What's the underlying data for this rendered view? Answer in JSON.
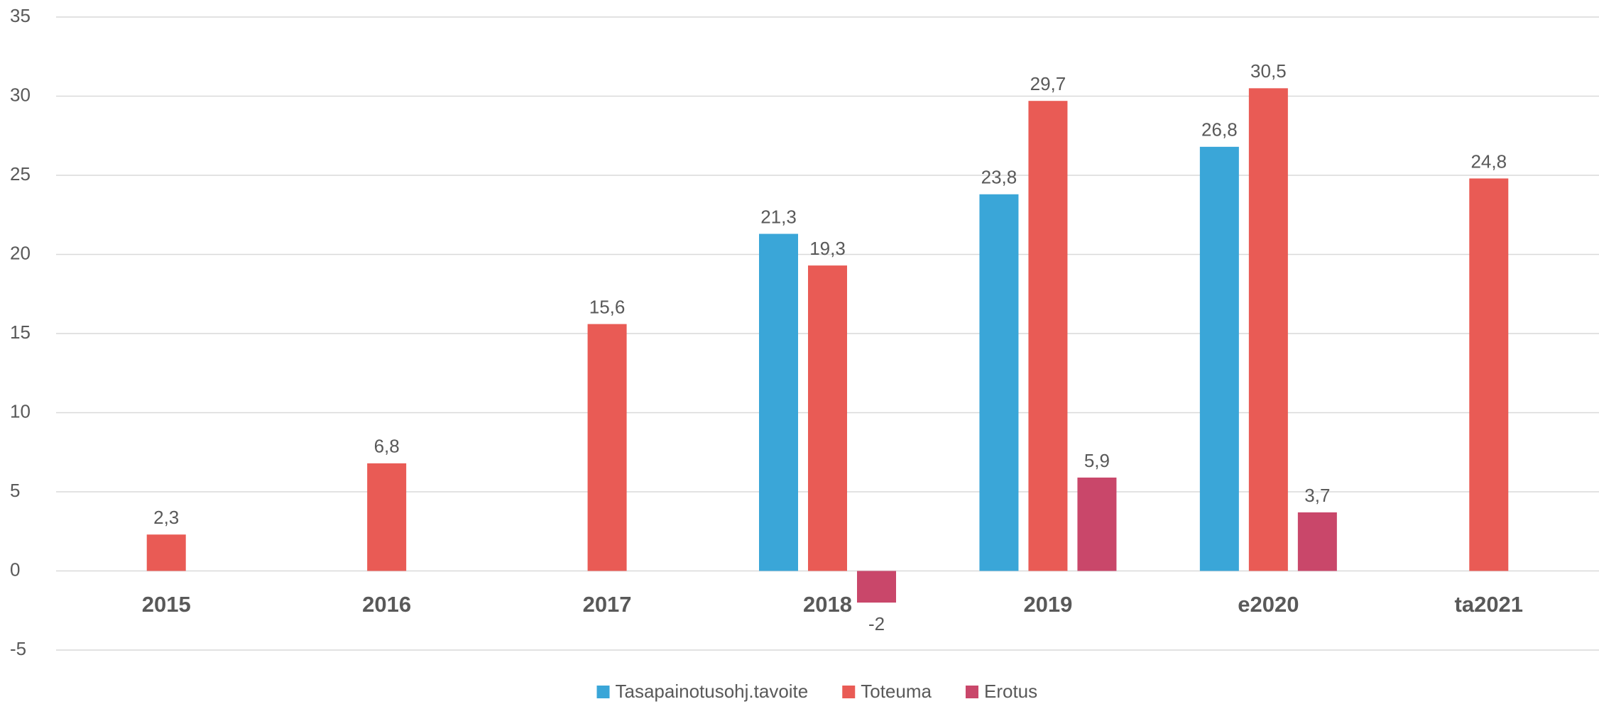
{
  "chart_data": {
    "type": "bar",
    "categories": [
      "2015",
      "2016",
      "2017",
      "2018",
      "2019",
      "e2020",
      "ta2021"
    ],
    "series": [
      {
        "name": "Tasapainotusohj.tavoite",
        "color": "#3aa6d8",
        "values": [
          null,
          null,
          null,
          21.3,
          23.8,
          26.8,
          null
        ],
        "value_labels": [
          null,
          null,
          null,
          "21,3",
          "23,8",
          "26,8",
          null
        ]
      },
      {
        "name": "Toteuma",
        "color": "#e95b55",
        "values": [
          2.3,
          6.8,
          15.6,
          19.3,
          29.7,
          30.5,
          24.8
        ],
        "value_labels": [
          "2,3",
          "6,8",
          "15,6",
          "19,3",
          "29,7",
          "30,5",
          "24,8"
        ]
      },
      {
        "name": "Erotus",
        "color": "#c9476a",
        "values": [
          null,
          null,
          null,
          -2,
          5.9,
          3.7,
          null
        ],
        "value_labels": [
          null,
          null,
          null,
          "-2",
          "5,9",
          "3,7",
          null
        ]
      }
    ],
    "ylim": [
      -5,
      35
    ],
    "yticks": [
      -5,
      0,
      5,
      10,
      15,
      20,
      25,
      30,
      35
    ],
    "grid": true,
    "legend": "bottom"
  }
}
